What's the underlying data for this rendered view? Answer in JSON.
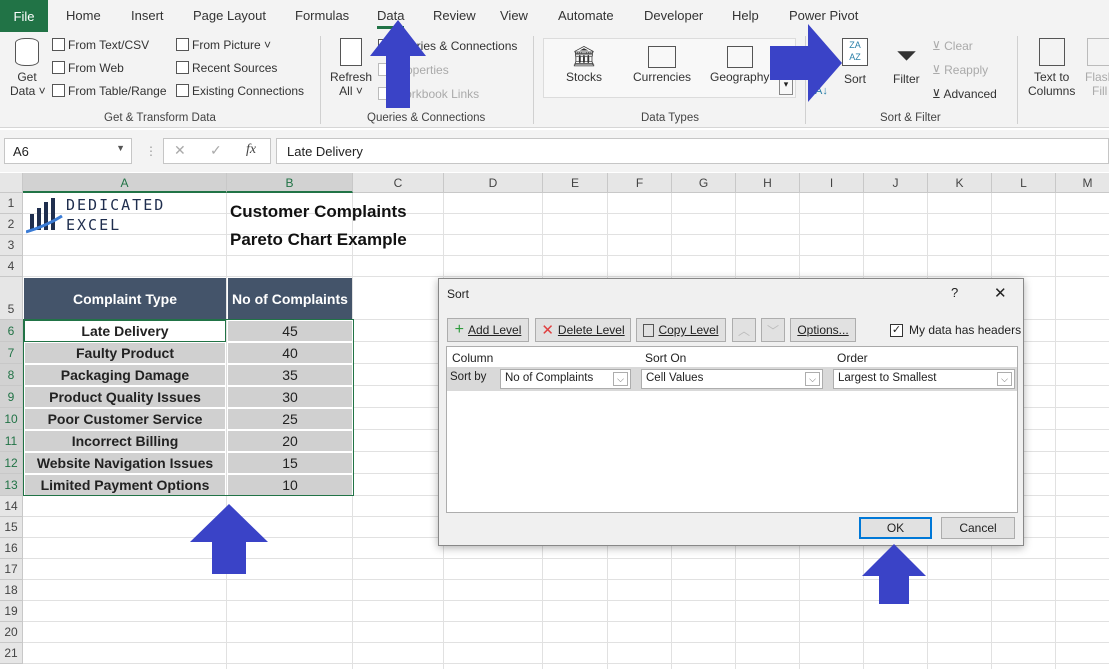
{
  "tabs": [
    "File",
    "Home",
    "Insert",
    "Page Layout",
    "Formulas",
    "Data",
    "Review",
    "View",
    "Automate",
    "Developer",
    "Help",
    "Power Pivot"
  ],
  "active_tab": "Data",
  "ribbon": {
    "get_data": "Get Data",
    "get_data_1": "Get",
    "get_data_2": "Data ˅",
    "from_text": "From Text/CSV",
    "from_web": "From Web",
    "from_table": "From Table/Range",
    "from_picture": "From Picture ˅",
    "recent_sources": "Recent Sources",
    "existing_connections": "Existing Connections",
    "group_get": "Get & Transform Data",
    "refresh_1": "Refresh",
    "refresh_2": "All ˅",
    "queries": "Queries & Connections",
    "properties": "Properties",
    "workbook_links": "Workbook Links",
    "group_queries": "Queries & Connections",
    "stocks": "Stocks",
    "currencies": "Currencies",
    "geography": "Geography",
    "group_types": "Data Types",
    "sort": "Sort",
    "filter": "Filter",
    "clear": "Clear",
    "reapply": "Reapply",
    "advanced": "Advanced",
    "group_sort": "Sort & Filter",
    "text_to_1": "Text to",
    "text_to_2": "Columns",
    "flash_1": "Flash",
    "flash_2": "Fill"
  },
  "formula_bar": {
    "name_box": "A6",
    "fx": "fx",
    "value": "Late Delivery"
  },
  "columns": [
    "A",
    "B",
    "C",
    "D",
    "E",
    "F",
    "G",
    "H",
    "I",
    "J",
    "K",
    "L",
    "M"
  ],
  "rows": [
    "1",
    "2",
    "3",
    "4",
    "5",
    "6",
    "7",
    "8",
    "9",
    "10",
    "11",
    "12",
    "13",
    "14",
    "15",
    "16",
    "17",
    "18",
    "19",
    "20",
    "21"
  ],
  "sheet": {
    "logo_text": "DEDICATED EXCEL",
    "title1": "Customer Complaints",
    "title2": "Pareto Chart Example",
    "headers": [
      "Complaint Type",
      "No of Complaints"
    ],
    "data": [
      [
        "Late Delivery",
        "45"
      ],
      [
        "Faulty Product",
        "40"
      ],
      [
        "Packaging Damage",
        "35"
      ],
      [
        "Product Quality Issues",
        "30"
      ],
      [
        "Poor Customer Service",
        "25"
      ],
      [
        "Incorrect Billing",
        "20"
      ],
      [
        "Website Navigation Issues",
        "15"
      ],
      [
        "Limited Payment Options",
        "10"
      ]
    ]
  },
  "dialog": {
    "title": "Sort",
    "help": "?",
    "close": "✕",
    "add_level": "Add Level",
    "delete_level": "Delete Level",
    "copy_level": "Copy Level",
    "options": "Options...",
    "headers_checkbox": "My data has headers",
    "headers_checked": true,
    "col_column": "Column",
    "col_sort_on": "Sort On",
    "col_order": "Order",
    "sort_by": "Sort by",
    "column_value": "No of Complaints",
    "sort_on_value": "Cell Values",
    "order_value": "Largest to Smallest",
    "ok": "OK",
    "cancel": "Cancel"
  },
  "colors": {
    "accent": "#217346",
    "header_fill": "#44546a",
    "arrow": "#3a43c7"
  }
}
